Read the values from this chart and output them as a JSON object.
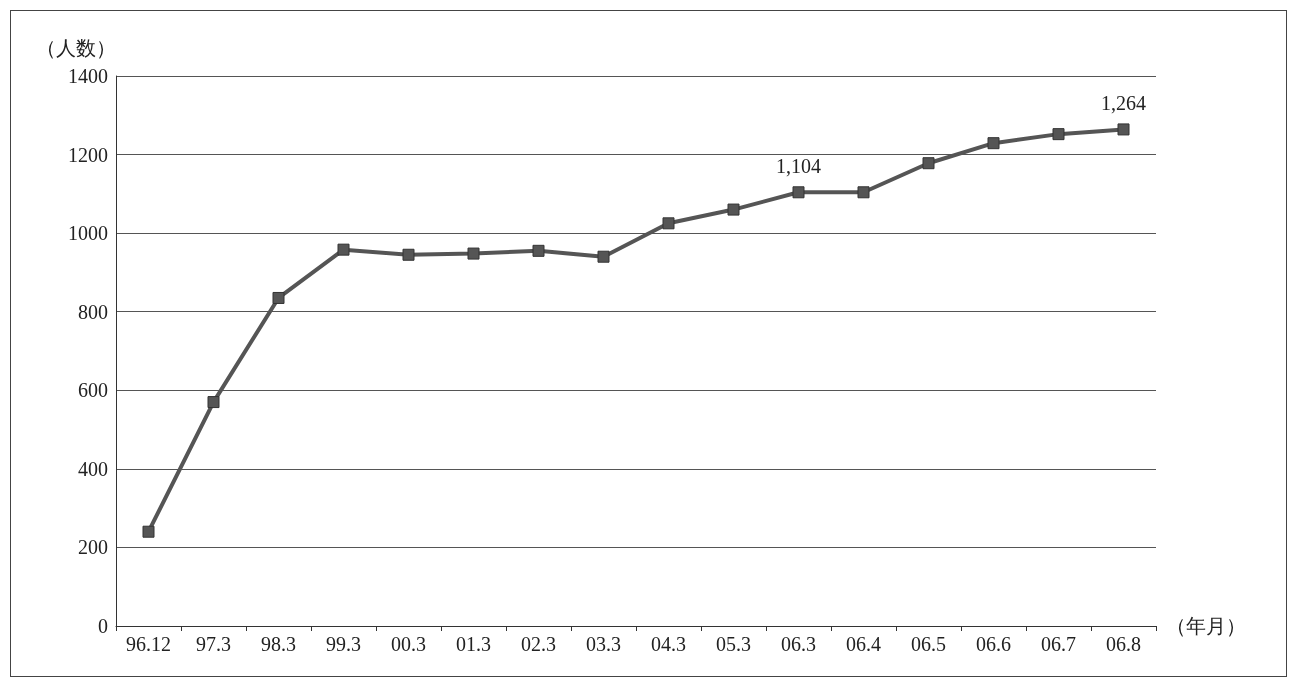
{
  "chart_data": {
    "type": "line",
    "xlabel": "（年月）",
    "ylabel": "（人数）",
    "categories": [
      "96.12",
      "97.3",
      "98.3",
      "99.3",
      "00.3",
      "01.3",
      "02.3",
      "03.3",
      "04.3",
      "05.3",
      "06.3",
      "06.4",
      "06.5",
      "06.6",
      "06.7",
      "06.8"
    ],
    "series": [
      {
        "color": "#555555",
        "values": [
          240,
          570,
          835,
          958,
          945,
          948,
          955,
          940,
          1025,
          1060,
          1104,
          1104,
          1178,
          1229,
          1252,
          1264
        ],
        "value_labels": [
          null,
          null,
          null,
          null,
          null,
          null,
          null,
          null,
          null,
          null,
          "1,104",
          null,
          null,
          null,
          null,
          "1,264"
        ]
      }
    ],
    "ylim": [
      0,
      1400
    ],
    "yticks": [
      0,
      200,
      400,
      600,
      800,
      1000,
      1200,
      1400
    ],
    "grid": "y",
    "marker": "square",
    "line_style": "solid"
  }
}
